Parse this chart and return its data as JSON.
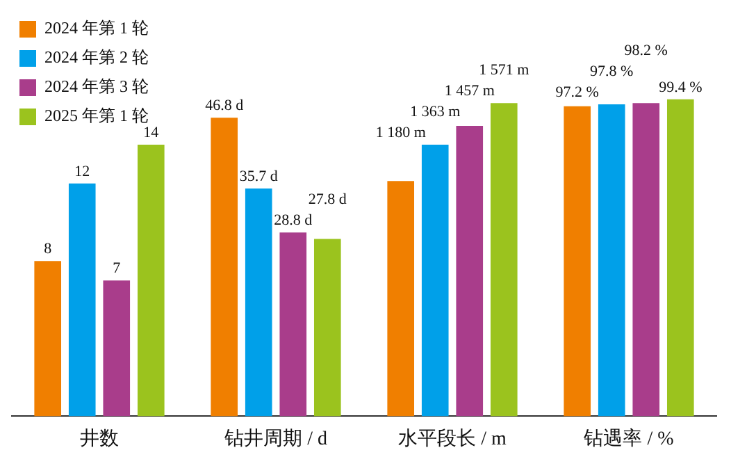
{
  "chart_data": [
    {
      "type": "bar",
      "categories": [
        "井数"
      ],
      "tick_labels": "x",
      "legend": "top left",
      "data_labels": true,
      "series": [
        {
          "name": "2024 年第 1 轮",
          "color": "#f07f00",
          "values": [
            8
          ]
        },
        {
          "name": "2024 年第 2 轮",
          "color": "#00a0e9",
          "values": [
            12
          ]
        },
        {
          "name": "2024 年第 3 轮",
          "color": "#a93d8b",
          "values": [
            7
          ]
        },
        {
          "name": "2025 年第 1 轮",
          "color": "#9bc31e",
          "values": [
            14
          ]
        }
      ]
    },
    {
      "type": "bar",
      "categories": [
        "钻井周期 / d"
      ],
      "tick_labels": "x",
      "series": [
        {
          "color": "#f07f00",
          "values": [
            46.8
          ],
          "value_labels": [
            "46.8 d"
          ]
        },
        {
          "color": "#00a0e9",
          "values": [
            35.7
          ],
          "value_labels": [
            "35.7 d"
          ]
        },
        {
          "color": "#a93d8b",
          "values": [
            28.8
          ],
          "value_labels": [
            "28.8 d"
          ]
        },
        {
          "color": "#9bc31e",
          "values": [
            27.8
          ],
          "value_labels": [
            "27.8 d"
          ]
        }
      ]
    },
    {
      "type": "bar",
      "categories": [
        "水平段长 / m"
      ],
      "tick_labels": "x",
      "series": [
        {
          "color": "#f07f00",
          "values": [
            1180
          ],
          "value_labels": [
            "1 180 m"
          ]
        },
        {
          "color": "#00a0e9",
          "values": [
            1363
          ],
          "value_labels": [
            "1 363 m"
          ]
        },
        {
          "color": "#a93d8b",
          "values": [
            1457
          ],
          "value_labels": [
            "1 457 m"
          ]
        },
        {
          "color": "#9bc31e",
          "values": [
            1571
          ],
          "value_labels": [
            "1 571 m"
          ]
        }
      ]
    },
    {
      "type": "bar",
      "categories": [
        "钻遇率 / %"
      ],
      "tick_labels": "x",
      "series": [
        {
          "color": "#f07f00",
          "values": [
            97.2
          ],
          "value_labels": [
            "97.2 %"
          ]
        },
        {
          "color": "#00a0e9",
          "values": [
            97.8
          ],
          "value_labels": [
            "97.8 %"
          ]
        },
        {
          "color": "#a93d8b",
          "values": [
            98.2
          ],
          "value_labels": [
            "98.2 %"
          ]
        },
        {
          "color": "#9bc31e",
          "values": [
            99.4
          ],
          "value_labels": [
            "99.4 %"
          ]
        }
      ]
    }
  ]
}
